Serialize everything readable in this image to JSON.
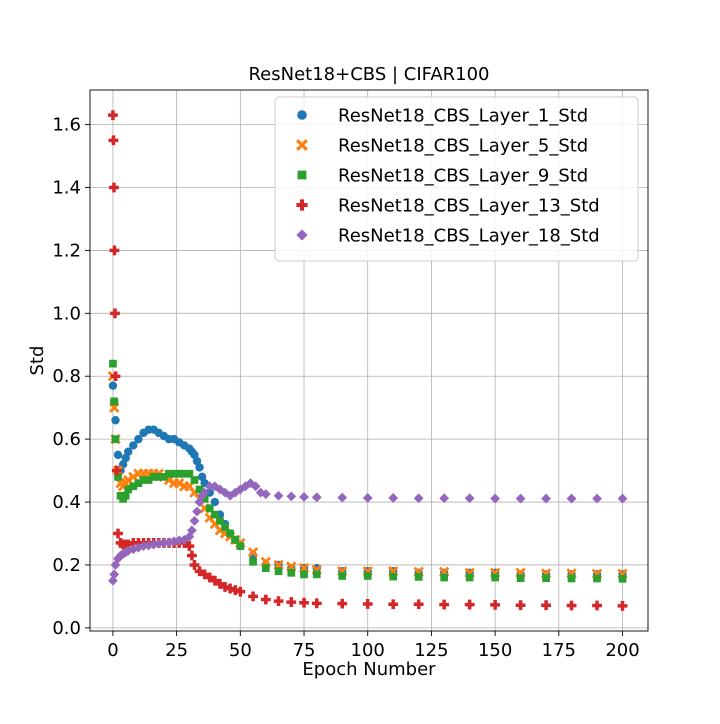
{
  "chart_data": {
    "type": "scatter",
    "title": "ResNet18+CBS | CIFAR100",
    "xlabel": "Epoch Number",
    "ylabel": "Std",
    "xlim": [
      -9,
      210
    ],
    "ylim": [
      -0.01,
      1.71
    ],
    "xticks": [
      0,
      25,
      50,
      75,
      100,
      125,
      150,
      175,
      200
    ],
    "yticks": [
      0.0,
      0.2,
      0.4,
      0.6,
      0.8,
      1.0,
      1.2,
      1.4,
      1.6
    ],
    "ytick_labels": [
      "0.0",
      "0.2",
      "0.4",
      "0.6",
      "0.8",
      "1.0",
      "1.2",
      "1.4",
      "1.6"
    ],
    "grid": true,
    "legend_position": "top-right",
    "series": [
      {
        "name": "ResNet18_CBS_Layer_1_Std",
        "marker": "circle",
        "color": "#1f77b4",
        "x": [
          0,
          0.5,
          1,
          2,
          3,
          4,
          5,
          6,
          8,
          10,
          12,
          14,
          16,
          18,
          20,
          22,
          24,
          26,
          28,
          30,
          31,
          32,
          33,
          34,
          35,
          36,
          38,
          40,
          42,
          44,
          46,
          48,
          50,
          55,
          60,
          65,
          70,
          75,
          80,
          90,
          100,
          110,
          120,
          130,
          140,
          150,
          160,
          170,
          180,
          190,
          200
        ],
        "y": [
          0.77,
          0.72,
          0.66,
          0.55,
          0.5,
          0.52,
          0.54,
          0.56,
          0.58,
          0.6,
          0.62,
          0.63,
          0.63,
          0.62,
          0.61,
          0.6,
          0.6,
          0.59,
          0.58,
          0.57,
          0.56,
          0.55,
          0.53,
          0.51,
          0.48,
          0.46,
          0.43,
          0.4,
          0.36,
          0.33,
          0.3,
          0.28,
          0.26,
          0.23,
          0.2,
          0.2,
          0.19,
          0.19,
          0.19,
          0.18,
          0.18,
          0.18,
          0.175,
          0.175,
          0.175,
          0.175,
          0.17,
          0.17,
          0.17,
          0.17,
          0.17
        ]
      },
      {
        "name": "ResNet18_CBS_Layer_5_Std",
        "marker": "x",
        "color": "#ff7f0e",
        "x": [
          0,
          0.5,
          1,
          2,
          3,
          4,
          5,
          6,
          8,
          10,
          12,
          14,
          16,
          18,
          20,
          22,
          24,
          26,
          28,
          30,
          32,
          34,
          36,
          38,
          40,
          42,
          44,
          46,
          48,
          50,
          55,
          60,
          65,
          70,
          75,
          80,
          90,
          100,
          110,
          120,
          130,
          140,
          150,
          160,
          170,
          180,
          190,
          200
        ],
        "y": [
          0.8,
          0.7,
          0.6,
          0.5,
          0.46,
          0.45,
          0.46,
          0.47,
          0.48,
          0.49,
          0.49,
          0.49,
          0.49,
          0.49,
          0.48,
          0.47,
          0.46,
          0.46,
          0.45,
          0.45,
          0.43,
          0.41,
          0.38,
          0.35,
          0.33,
          0.31,
          0.3,
          0.29,
          0.28,
          0.27,
          0.24,
          0.21,
          0.2,
          0.195,
          0.19,
          0.185,
          0.18,
          0.18,
          0.18,
          0.178,
          0.178,
          0.175,
          0.175,
          0.175,
          0.173,
          0.173,
          0.172,
          0.172
        ]
      },
      {
        "name": "ResNet18_CBS_Layer_9_Std",
        "marker": "square",
        "color": "#2ca02c",
        "x": [
          0,
          0.5,
          1,
          2,
          3,
          4,
          5,
          6,
          8,
          10,
          12,
          14,
          16,
          18,
          20,
          22,
          24,
          26,
          28,
          30,
          32,
          34,
          36,
          38,
          40,
          42,
          44,
          46,
          48,
          50,
          55,
          60,
          65,
          70,
          75,
          80,
          90,
          100,
          110,
          120,
          130,
          140,
          150,
          160,
          170,
          180,
          190,
          200
        ],
        "y": [
          0.84,
          0.72,
          0.6,
          0.48,
          0.42,
          0.41,
          0.42,
          0.44,
          0.45,
          0.46,
          0.47,
          0.47,
          0.48,
          0.48,
          0.48,
          0.49,
          0.49,
          0.49,
          0.49,
          0.49,
          0.47,
          0.44,
          0.41,
          0.38,
          0.36,
          0.34,
          0.32,
          0.3,
          0.28,
          0.26,
          0.21,
          0.19,
          0.18,
          0.175,
          0.17,
          0.17,
          0.165,
          0.165,
          0.163,
          0.162,
          0.16,
          0.16,
          0.16,
          0.158,
          0.158,
          0.157,
          0.157,
          0.156
        ]
      },
      {
        "name": "ResNet18_CBS_Layer_13_Std",
        "marker": "plus",
        "color": "#d62728",
        "x": [
          0,
          0.2,
          0.4,
          0.6,
          0.8,
          1,
          1.5,
          2,
          3,
          4,
          5,
          6,
          8,
          10,
          12,
          14,
          16,
          18,
          20,
          22,
          24,
          26,
          28,
          30,
          31,
          32,
          34,
          36,
          38,
          40,
          42,
          44,
          46,
          48,
          50,
          55,
          60,
          65,
          70,
          75,
          80,
          90,
          100,
          110,
          120,
          130,
          140,
          150,
          160,
          170,
          180,
          190,
          200
        ],
        "y": [
          1.63,
          1.55,
          1.4,
          1.2,
          1.0,
          0.8,
          0.5,
          0.3,
          0.27,
          0.265,
          0.265,
          0.265,
          0.27,
          0.27,
          0.27,
          0.27,
          0.27,
          0.27,
          0.27,
          0.27,
          0.27,
          0.27,
          0.27,
          0.26,
          0.23,
          0.2,
          0.18,
          0.17,
          0.16,
          0.15,
          0.14,
          0.13,
          0.125,
          0.12,
          0.115,
          0.1,
          0.09,
          0.085,
          0.082,
          0.08,
          0.078,
          0.077,
          0.076,
          0.075,
          0.075,
          0.074,
          0.074,
          0.073,
          0.072,
          0.072,
          0.071,
          0.071,
          0.07
        ]
      },
      {
        "name": "ResNet18_CBS_Layer_18_Std",
        "marker": "diamond",
        "color": "#9467bd",
        "x": [
          0,
          0.5,
          1,
          2,
          3,
          4,
          5,
          6,
          8,
          10,
          12,
          14,
          16,
          18,
          20,
          22,
          24,
          26,
          28,
          30,
          31,
          32,
          33,
          34,
          35,
          36,
          38,
          40,
          42,
          44,
          46,
          48,
          50,
          52,
          54,
          56,
          58,
          60,
          65,
          70,
          75,
          80,
          90,
          100,
          110,
          120,
          130,
          140,
          150,
          160,
          170,
          180,
          190,
          200
        ],
        "y": [
          0.15,
          0.17,
          0.2,
          0.22,
          0.23,
          0.235,
          0.24,
          0.245,
          0.25,
          0.255,
          0.26,
          0.262,
          0.265,
          0.268,
          0.27,
          0.272,
          0.275,
          0.278,
          0.28,
          0.29,
          0.31,
          0.34,
          0.37,
          0.4,
          0.42,
          0.43,
          0.45,
          0.45,
          0.44,
          0.43,
          0.42,
          0.43,
          0.44,
          0.45,
          0.46,
          0.45,
          0.43,
          0.425,
          0.42,
          0.418,
          0.416,
          0.415,
          0.414,
          0.413,
          0.413,
          0.412,
          0.412,
          0.412,
          0.411,
          0.411,
          0.411,
          0.411,
          0.411,
          0.411
        ]
      }
    ]
  }
}
